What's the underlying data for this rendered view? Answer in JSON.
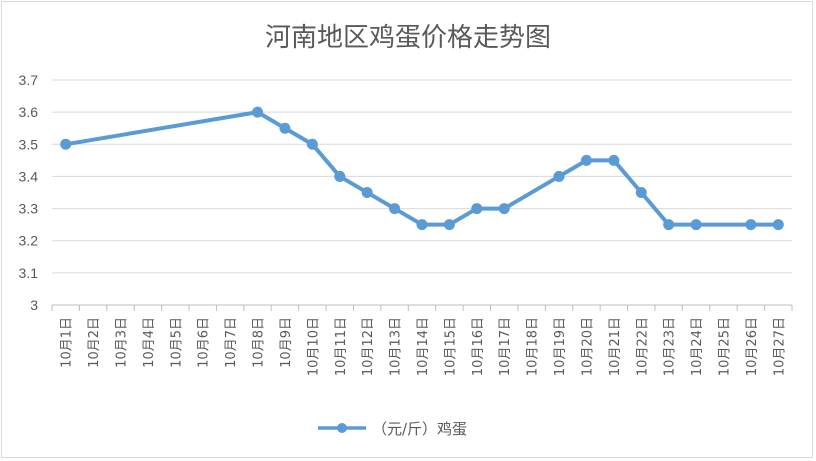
{
  "chart_data": {
    "type": "line",
    "title": "河南地区鸡蛋价格走势图",
    "xlabel": "",
    "ylabel": "",
    "ylim": [
      3,
      3.7
    ],
    "yticks": [
      "3",
      "3.1",
      "3.2",
      "3.3",
      "3.4",
      "3.5",
      "3.6",
      "3.7"
    ],
    "grid": true,
    "legend_position": "bottom",
    "categories": [
      "10月1日",
      "10月2日",
      "10月3日",
      "10月4日",
      "10月5日",
      "10月6日",
      "10月7日",
      "10月8日",
      "10月9日",
      "10月10日",
      "10月11日",
      "10月12日",
      "10月13日",
      "10月14日",
      "10月15日",
      "10月16日",
      "10月17日",
      "10月18日",
      "10月19日",
      "10月20日",
      "10月21日",
      "10月22日",
      "10月23日",
      "10月24日",
      "10月25日",
      "10月26日",
      "10月27日"
    ],
    "series": [
      {
        "name": "（元/斤）鸡蛋",
        "color": "#5b9bd5",
        "values": [
          3.5,
          null,
          null,
          null,
          null,
          null,
          null,
          3.6,
          3.55,
          3.5,
          3.4,
          3.35,
          3.3,
          3.25,
          3.25,
          3.3,
          3.3,
          null,
          3.4,
          3.45,
          3.45,
          3.35,
          3.25,
          3.25,
          null,
          3.25,
          3.25
        ]
      }
    ]
  }
}
